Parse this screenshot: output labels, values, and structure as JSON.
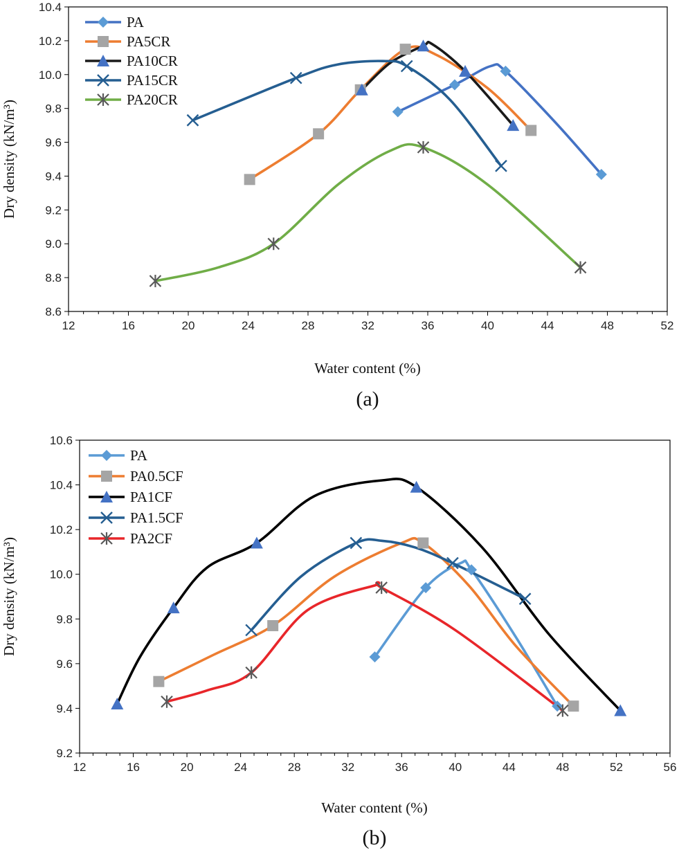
{
  "chart_data": [
    {
      "panel": "(a)",
      "type": "line",
      "xlabel": "Water content (%)",
      "ylabel": "Dry density (kN/m³)",
      "xlim": [
        12,
        52
      ],
      "ylim": [
        8.6,
        10.4
      ],
      "xticks": [
        12,
        16,
        20,
        24,
        28,
        32,
        36,
        40,
        44,
        48,
        52
      ],
      "yticks": [
        8.6,
        8.8,
        9.0,
        9.2,
        9.4,
        9.6,
        9.8,
        10.0,
        10.2,
        10.4
      ],
      "ytick_decimals": 1,
      "legend": "top-left",
      "series": [
        {
          "name": "PA",
          "color": "#4472c4",
          "marker": "diamond",
          "marker_color": "#5b9bd5",
          "x": [
            34.0,
            37.8,
            41.2,
            47.6
          ],
          "y": [
            9.78,
            9.94,
            10.02,
            9.41
          ],
          "curve": [
            [
              34.0,
              9.78
            ],
            [
              37.8,
              9.94
            ],
            [
              40.2,
              10.05
            ],
            [
              41.2,
              10.02
            ],
            [
              44.5,
              9.72
            ],
            [
              47.6,
              9.41
            ]
          ]
        },
        {
          "name": "PA5CR",
          "color": "#ed7d31",
          "marker": "square",
          "marker_color": "#a5a5a5",
          "x": [
            24.1,
            28.7,
            31.5,
            34.5,
            42.9
          ],
          "y": [
            9.38,
            9.65,
            9.91,
            10.15,
            9.67
          ],
          "curve": [
            [
              24.1,
              9.38
            ],
            [
              28.7,
              9.65
            ],
            [
              31.5,
              9.91
            ],
            [
              34.5,
              10.15
            ],
            [
              36.5,
              10.12
            ],
            [
              40.0,
              9.92
            ],
            [
              42.9,
              9.67
            ]
          ]
        },
        {
          "name": "PA10CR",
          "color": "#1a1a1a",
          "marker": "triangle",
          "marker_color": "#4472c4",
          "x": [
            31.6,
            35.7,
            38.5,
            41.7
          ],
          "y": [
            9.91,
            10.17,
            10.02,
            9.7
          ],
          "curve": [
            [
              31.6,
              9.91
            ],
            [
              33.5,
              10.07
            ],
            [
              35.7,
              10.17
            ],
            [
              36.3,
              10.18
            ],
            [
              38.5,
              10.02
            ],
            [
              41.7,
              9.7
            ]
          ]
        },
        {
          "name": "PA15CR",
          "color": "#255e91",
          "marker": "x",
          "marker_color": "#255e91",
          "x": [
            20.3,
            27.2,
            34.6,
            40.9
          ],
          "y": [
            9.73,
            9.98,
            10.05,
            9.46
          ],
          "curve": [
            [
              20.3,
              9.73
            ],
            [
              27.2,
              9.98
            ],
            [
              30.0,
              10.06
            ],
            [
              33.0,
              10.08
            ],
            [
              34.6,
              10.05
            ],
            [
              37.5,
              9.85
            ],
            [
              40.9,
              9.46
            ]
          ]
        },
        {
          "name": "PA20CR",
          "color": "#70ad47",
          "marker": "star",
          "marker_color": "#595959",
          "x": [
            17.8,
            25.7,
            35.7,
            46.2
          ],
          "y": [
            8.78,
            9.0,
            9.57,
            8.86
          ],
          "curve": [
            [
              17.8,
              8.78
            ],
            [
              22.0,
              8.86
            ],
            [
              25.7,
              9.0
            ],
            [
              30.0,
              9.35
            ],
            [
              33.5,
              9.55
            ],
            [
              35.7,
              9.57
            ],
            [
              40.0,
              9.35
            ],
            [
              46.2,
              8.86
            ]
          ]
        }
      ]
    },
    {
      "panel": "(b)",
      "type": "line",
      "xlabel": "Water content (%)",
      "ylabel": "Dry density (kN/m³)",
      "xlim": [
        12,
        56
      ],
      "ylim": [
        9.2,
        10.6
      ],
      "xticks": [
        12,
        16,
        20,
        24,
        28,
        32,
        36,
        40,
        44,
        48,
        52,
        56
      ],
      "yticks": [
        9.2,
        9.4,
        9.6,
        9.8,
        10.0,
        10.2,
        10.4,
        10.6
      ],
      "ytick_decimals": 1,
      "legend": "top-left",
      "series": [
        {
          "name": "PA",
          "color": "#5b9bd5",
          "marker": "diamond",
          "marker_color": "#5b9bd5",
          "x": [
            34.0,
            37.8,
            41.2,
            47.6
          ],
          "y": [
            9.63,
            9.94,
            10.02,
            9.41
          ],
          "curve": [
            [
              34.0,
              9.63
            ],
            [
              37.8,
              9.94
            ],
            [
              40.4,
              10.05
            ],
            [
              41.2,
              10.02
            ],
            [
              44.5,
              9.72
            ],
            [
              47.6,
              9.41
            ]
          ]
        },
        {
          "name": "PA0.5CF",
          "color": "#ed7d31",
          "marker": "square",
          "marker_color": "#a5a5a5",
          "x": [
            17.9,
            26.4,
            37.6,
            48.8
          ],
          "y": [
            9.52,
            9.77,
            10.14,
            9.41
          ],
          "curve": [
            [
              17.9,
              9.52
            ],
            [
              22.0,
              9.64
            ],
            [
              26.4,
              9.77
            ],
            [
              31.0,
              9.99
            ],
            [
              36.0,
              10.14
            ],
            [
              37.6,
              10.14
            ],
            [
              41.0,
              9.95
            ],
            [
              44.5,
              9.68
            ],
            [
              48.8,
              9.41
            ]
          ]
        },
        {
          "name": "PA1CF",
          "color": "#000000",
          "marker": "triangle",
          "marker_color": "#4472c4",
          "x": [
            14.8,
            19.0,
            25.2,
            37.1,
            52.3
          ],
          "y": [
            9.42,
            9.85,
            10.14,
            10.39,
            9.39
          ],
          "curve": [
            [
              14.8,
              9.42
            ],
            [
              16.5,
              9.63
            ],
            [
              19.0,
              9.85
            ],
            [
              21.5,
              10.03
            ],
            [
              25.2,
              10.14
            ],
            [
              29.5,
              10.35
            ],
            [
              34.5,
              10.42
            ],
            [
              37.1,
              10.39
            ],
            [
              42.0,
              10.12
            ],
            [
              47.0,
              9.73
            ],
            [
              52.3,
              9.39
            ]
          ]
        },
        {
          "name": "PA1.5CF",
          "color": "#255e91",
          "marker": "x",
          "marker_color": "#255e91",
          "x": [
            24.8,
            32.6,
            39.8,
            45.2
          ],
          "y": [
            9.75,
            10.14,
            10.05,
            9.89
          ],
          "curve": [
            [
              24.8,
              9.75
            ],
            [
              28.5,
              9.99
            ],
            [
              32.6,
              10.14
            ],
            [
              34.5,
              10.15
            ],
            [
              37.0,
              10.12
            ],
            [
              39.8,
              10.05
            ],
            [
              45.2,
              9.89
            ]
          ]
        },
        {
          "name": "PA2CF",
          "color": "#e8262a",
          "marker": "star",
          "marker_color": "#595959",
          "x": [
            18.5,
            24.8,
            34.5,
            48.0
          ],
          "y": [
            9.43,
            9.56,
            9.94,
            9.39
          ],
          "curve": [
            [
              18.5,
              9.43
            ],
            [
              21.5,
              9.48
            ],
            [
              24.8,
              9.56
            ],
            [
              29.0,
              9.84
            ],
            [
              34.0,
              9.95
            ],
            [
              34.5,
              9.94
            ],
            [
              40.0,
              9.75
            ],
            [
              48.0,
              9.39
            ]
          ]
        }
      ]
    }
  ]
}
